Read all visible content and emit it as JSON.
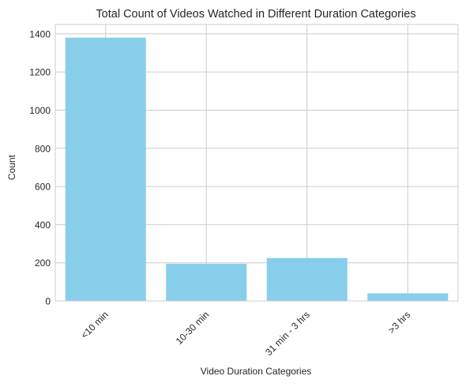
{
  "chart_data": {
    "type": "bar",
    "title": "Total Count of Videos Watched in Different Duration Categories",
    "xlabel": "Video Duration Categories",
    "ylabel": "Count",
    "categories": [
      "<10 min",
      "10-30 min",
      "31 min - 3 hrs",
      ">3 hrs"
    ],
    "values": [
      1380,
      195,
      225,
      40
    ],
    "ylim": [
      0,
      1449
    ],
    "yticks": [
      0,
      200,
      400,
      600,
      800,
      1000,
      1200,
      1400
    ],
    "grid": true,
    "bar_color": "#87CEEB",
    "grid_color": "#cccccc"
  }
}
